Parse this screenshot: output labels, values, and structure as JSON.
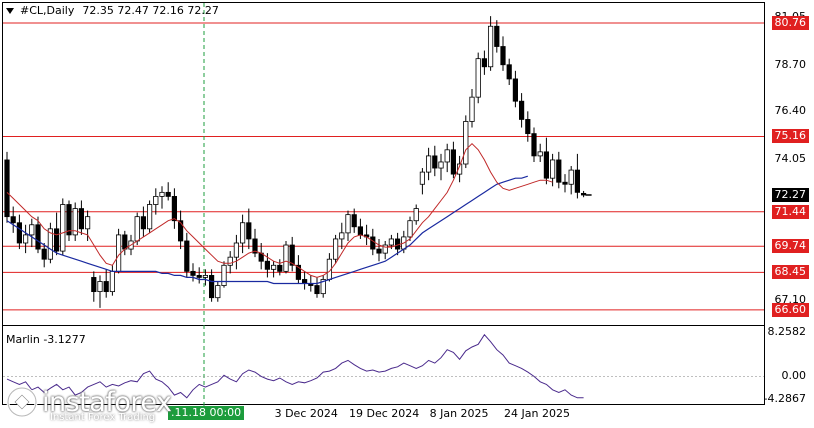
{
  "header": {
    "symbol": "#CL,Daily",
    "ohlc": "72.35 72.47 72.16 72.27"
  },
  "price_labels": [
    {
      "text": "81.05",
      "value": 81.05,
      "style": "plain"
    },
    {
      "text": "80.76",
      "value": 80.76,
      "style": "red"
    },
    {
      "text": "78.70",
      "value": 78.7,
      "style": "plain"
    },
    {
      "text": "76.40",
      "value": 76.4,
      "style": "plain"
    },
    {
      "text": "75.16",
      "value": 75.16,
      "style": "red"
    },
    {
      "text": "74.05",
      "value": 74.05,
      "style": "plain"
    },
    {
      "text": "72.27",
      "value": 72.27,
      "style": "black"
    },
    {
      "text": "71.44",
      "value": 71.44,
      "style": "red"
    },
    {
      "text": "69.74",
      "value": 69.74,
      "style": "red"
    },
    {
      "text": "68.45",
      "value": 68.45,
      "style": "red"
    },
    {
      "text": "67.10",
      "value": 67.1,
      "style": "plain"
    },
    {
      "text": "66.60",
      "value": 66.6,
      "style": "red"
    }
  ],
  "horizontal_levels": [
    80.76,
    75.16,
    71.44,
    69.74,
    68.45,
    66.6
  ],
  "crosshair": {
    "label": ".11.18 00:00"
  },
  "date_labels": [
    {
      "text": "3 Dec 2024",
      "index": 48
    },
    {
      "text": "19 Dec 2024",
      "index": 60
    },
    {
      "text": "8 Jan 2025",
      "index": 73
    },
    {
      "text": "24 Jan 2025",
      "index": 85
    }
  ],
  "indicator": {
    "name": "Marlin -3.1277",
    "levels": [
      {
        "text": "8.2582",
        "value": 8.2582
      },
      {
        "text": "0.00",
        "value": 0.0
      },
      {
        "text": "-4.2867",
        "value": -4.2867
      }
    ]
  },
  "watermark": {
    "brand": "instaforex",
    "tagline": "Instant Forex Trading"
  },
  "colors": {
    "bull": "#ffffff",
    "bear": "#000000",
    "level": "#e02020",
    "ma_fast": "#c02828",
    "ma_slow": "#1a2aa0",
    "osc": "#4a2a8c",
    "crosshair": "#1c9c3c"
  },
  "chart_data": {
    "type": "candlestick",
    "title": "#CL,Daily",
    "ylim": [
      66.0,
      81.6
    ],
    "candles": [
      {
        "o": 74.0,
        "h": 74.4,
        "l": 70.9,
        "c": 71.2
      },
      {
        "o": 71.2,
        "h": 71.7,
        "l": 70.4,
        "c": 70.9
      },
      {
        "o": 70.9,
        "h": 71.3,
        "l": 69.6,
        "c": 69.9
      },
      {
        "o": 69.9,
        "h": 70.8,
        "l": 69.4,
        "c": 70.3
      },
      {
        "o": 70.3,
        "h": 71.1,
        "l": 69.7,
        "c": 70.8
      },
      {
        "o": 70.8,
        "h": 71.2,
        "l": 69.4,
        "c": 69.6
      },
      {
        "o": 69.6,
        "h": 69.9,
        "l": 68.7,
        "c": 69.1
      },
      {
        "o": 69.1,
        "h": 70.9,
        "l": 68.9,
        "c": 70.6
      },
      {
        "o": 70.6,
        "h": 71.4,
        "l": 69.3,
        "c": 69.5
      },
      {
        "o": 69.5,
        "h": 72.1,
        "l": 69.3,
        "c": 71.8
      },
      {
        "o": 71.8,
        "h": 72.0,
        "l": 70.0,
        "c": 70.3
      },
      {
        "o": 70.3,
        "h": 71.9,
        "l": 70.0,
        "c": 71.6
      },
      {
        "o": 71.6,
        "h": 72.0,
        "l": 70.3,
        "c": 70.6
      },
      {
        "o": 70.6,
        "h": 71.5,
        "l": 70.0,
        "c": 71.2
      },
      {
        "o": 68.2,
        "h": 68.5,
        "l": 67.0,
        "c": 67.5
      },
      {
        "o": 67.5,
        "h": 68.3,
        "l": 66.7,
        "c": 68.0
      },
      {
        "o": 68.0,
        "h": 68.6,
        "l": 67.2,
        "c": 67.5
      },
      {
        "o": 67.5,
        "h": 68.8,
        "l": 67.3,
        "c": 68.5
      },
      {
        "o": 68.5,
        "h": 70.6,
        "l": 68.4,
        "c": 70.3
      },
      {
        "o": 70.3,
        "h": 70.5,
        "l": 69.3,
        "c": 69.6
      },
      {
        "o": 69.6,
        "h": 70.3,
        "l": 69.3,
        "c": 70.0
      },
      {
        "o": 70.0,
        "h": 71.4,
        "l": 69.8,
        "c": 71.2
      },
      {
        "o": 71.2,
        "h": 71.7,
        "l": 70.2,
        "c": 70.6
      },
      {
        "o": 70.6,
        "h": 72.0,
        "l": 70.4,
        "c": 71.8
      },
      {
        "o": 71.8,
        "h": 72.6,
        "l": 71.3,
        "c": 72.2
      },
      {
        "o": 72.2,
        "h": 72.7,
        "l": 71.6,
        "c": 72.4
      },
      {
        "o": 72.4,
        "h": 72.9,
        "l": 72.0,
        "c": 72.2
      },
      {
        "o": 72.2,
        "h": 72.6,
        "l": 70.6,
        "c": 71.0
      },
      {
        "o": 71.0,
        "h": 71.5,
        "l": 69.6,
        "c": 70.0
      },
      {
        "o": 70.0,
        "h": 70.4,
        "l": 68.2,
        "c": 68.5
      },
      {
        "o": 68.5,
        "h": 68.9,
        "l": 68.0,
        "c": 68.3
      },
      {
        "o": 68.3,
        "h": 68.7,
        "l": 67.9,
        "c": 68.2
      },
      {
        "o": 68.2,
        "h": 68.6,
        "l": 67.8,
        "c": 68.3
      },
      {
        "o": 68.3,
        "h": 68.6,
        "l": 67.0,
        "c": 67.2
      },
      {
        "o": 67.2,
        "h": 68.0,
        "l": 67.0,
        "c": 67.8
      },
      {
        "o": 67.8,
        "h": 69.0,
        "l": 67.7,
        "c": 68.8
      },
      {
        "o": 68.8,
        "h": 69.5,
        "l": 68.4,
        "c": 69.2
      },
      {
        "o": 69.2,
        "h": 70.3,
        "l": 68.6,
        "c": 69.9
      },
      {
        "o": 69.9,
        "h": 71.3,
        "l": 69.4,
        "c": 70.9
      },
      {
        "o": 70.9,
        "h": 71.6,
        "l": 69.6,
        "c": 70.1
      },
      {
        "o": 70.1,
        "h": 70.6,
        "l": 69.2,
        "c": 69.4
      },
      {
        "o": 69.4,
        "h": 69.9,
        "l": 68.6,
        "c": 69.0
      },
      {
        "o": 69.0,
        "h": 69.4,
        "l": 68.2,
        "c": 68.6
      },
      {
        "o": 68.6,
        "h": 69.0,
        "l": 68.2,
        "c": 68.8
      },
      {
        "o": 68.8,
        "h": 69.1,
        "l": 68.3,
        "c": 68.5
      },
      {
        "o": 68.5,
        "h": 70.0,
        "l": 68.4,
        "c": 69.8
      },
      {
        "o": 69.8,
        "h": 70.2,
        "l": 68.5,
        "c": 68.8
      },
      {
        "o": 68.8,
        "h": 69.3,
        "l": 67.9,
        "c": 68.1
      },
      {
        "o": 68.1,
        "h": 68.5,
        "l": 67.6,
        "c": 67.9
      },
      {
        "o": 67.9,
        "h": 68.3,
        "l": 67.5,
        "c": 67.8
      },
      {
        "o": 67.8,
        "h": 68.2,
        "l": 67.2,
        "c": 67.4
      },
      {
        "o": 67.4,
        "h": 68.3,
        "l": 67.2,
        "c": 68.1
      },
      {
        "o": 68.1,
        "h": 69.4,
        "l": 68.0,
        "c": 69.1
      },
      {
        "o": 69.1,
        "h": 70.3,
        "l": 68.9,
        "c": 70.1
      },
      {
        "o": 70.1,
        "h": 70.9,
        "l": 69.6,
        "c": 70.4
      },
      {
        "o": 70.4,
        "h": 71.5,
        "l": 70.0,
        "c": 71.3
      },
      {
        "o": 71.3,
        "h": 71.6,
        "l": 70.4,
        "c": 70.7
      },
      {
        "o": 70.7,
        "h": 71.1,
        "l": 70.1,
        "c": 70.3
      },
      {
        "o": 70.3,
        "h": 70.8,
        "l": 69.8,
        "c": 70.2
      },
      {
        "o": 70.2,
        "h": 70.6,
        "l": 69.3,
        "c": 69.6
      },
      {
        "o": 69.6,
        "h": 70.1,
        "l": 69.0,
        "c": 69.4
      },
      {
        "o": 69.4,
        "h": 70.0,
        "l": 69.1,
        "c": 69.8
      },
      {
        "o": 69.8,
        "h": 70.3,
        "l": 69.6,
        "c": 70.1
      },
      {
        "o": 70.1,
        "h": 70.4,
        "l": 69.3,
        "c": 69.6
      },
      {
        "o": 69.6,
        "h": 70.5,
        "l": 69.4,
        "c": 70.2
      },
      {
        "o": 70.2,
        "h": 71.2,
        "l": 70.0,
        "c": 71.0
      },
      {
        "o": 71.0,
        "h": 71.8,
        "l": 70.8,
        "c": 71.6
      },
      {
        "o": 72.8,
        "h": 73.6,
        "l": 72.3,
        "c": 73.4
      },
      {
        "o": 73.4,
        "h": 74.6,
        "l": 73.0,
        "c": 74.2
      },
      {
        "o": 74.2,
        "h": 74.7,
        "l": 73.2,
        "c": 73.6
      },
      {
        "o": 73.6,
        "h": 74.3,
        "l": 73.0,
        "c": 73.9
      },
      {
        "o": 73.9,
        "h": 74.8,
        "l": 73.4,
        "c": 74.5
      },
      {
        "o": 74.5,
        "h": 74.9,
        "l": 73.1,
        "c": 73.3
      },
      {
        "o": 73.3,
        "h": 74.2,
        "l": 72.9,
        "c": 73.8
      },
      {
        "o": 73.8,
        "h": 76.2,
        "l": 73.6,
        "c": 75.9
      },
      {
        "o": 75.9,
        "h": 77.5,
        "l": 75.6,
        "c": 77.1
      },
      {
        "o": 77.1,
        "h": 79.3,
        "l": 76.8,
        "c": 79.0
      },
      {
        "o": 79.0,
        "h": 79.4,
        "l": 78.2,
        "c": 78.6
      },
      {
        "o": 78.6,
        "h": 81.1,
        "l": 78.4,
        "c": 80.6
      },
      {
        "o": 80.6,
        "h": 80.9,
        "l": 79.3,
        "c": 79.6
      },
      {
        "o": 79.6,
        "h": 80.1,
        "l": 78.4,
        "c": 78.7
      },
      {
        "o": 78.7,
        "h": 79.0,
        "l": 77.7,
        "c": 78.0
      },
      {
        "o": 78.0,
        "h": 78.4,
        "l": 76.6,
        "c": 76.9
      },
      {
        "o": 76.9,
        "h": 77.3,
        "l": 75.6,
        "c": 76.0
      },
      {
        "o": 76.0,
        "h": 76.4,
        "l": 74.9,
        "c": 75.3
      },
      {
        "o": 75.3,
        "h": 75.6,
        "l": 73.9,
        "c": 74.2
      },
      {
        "o": 74.2,
        "h": 74.8,
        "l": 73.9,
        "c": 74.4
      },
      {
        "o": 74.4,
        "h": 75.1,
        "l": 72.8,
        "c": 73.1
      },
      {
        "o": 73.1,
        "h": 74.3,
        "l": 72.7,
        "c": 74.0
      },
      {
        "o": 74.0,
        "h": 74.4,
        "l": 72.6,
        "c": 72.9
      },
      {
        "o": 72.9,
        "h": 73.3,
        "l": 72.4,
        "c": 72.8
      },
      {
        "o": 72.8,
        "h": 73.7,
        "l": 72.3,
        "c": 73.5
      },
      {
        "o": 73.5,
        "h": 74.3,
        "l": 72.1,
        "c": 72.4
      },
      {
        "o": 72.35,
        "h": 72.47,
        "l": 72.16,
        "c": 72.27
      }
    ],
    "ma_fast": [
      72.4,
      72.1,
      71.8,
      71.5,
      71.2,
      71.0,
      70.6,
      70.4,
      70.3,
      70.4,
      70.5,
      70.5,
      70.4,
      70.3,
      69.8,
      69.3,
      68.9,
      68.8,
      69.3,
      69.6,
      69.8,
      70.0,
      70.2,
      70.4,
      70.6,
      70.8,
      71.0,
      71.1,
      70.9,
      70.5,
      70.2,
      69.9,
      69.6,
      69.3,
      69.0,
      68.9,
      68.9,
      69.0,
      69.2,
      69.4,
      69.5,
      69.4,
      69.2,
      69.0,
      68.9,
      69.0,
      68.9,
      68.7,
      68.5,
      68.3,
      68.2,
      68.3,
      68.5,
      68.9,
      69.4,
      69.9,
      70.2,
      70.3,
      70.2,
      70.0,
      69.8,
      69.7,
      69.7,
      69.8,
      69.9,
      70.1,
      70.5,
      70.9,
      71.2,
      71.6,
      72.0,
      72.4,
      73.0,
      73.7,
      74.5,
      74.8,
      74.5,
      74.0,
      73.4,
      72.9,
      72.6,
      72.5,
      72.6,
      72.7,
      72.8,
      72.9,
      73.0,
      73.0,
      72.9
    ],
    "ma_slow": [
      71.0,
      70.8,
      70.6,
      70.4,
      70.2,
      70.0,
      69.8,
      69.6,
      69.4,
      69.3,
      69.2,
      69.1,
      69.0,
      68.9,
      68.8,
      68.7,
      68.6,
      68.5,
      68.5,
      68.5,
      68.5,
      68.5,
      68.5,
      68.5,
      68.5,
      68.4,
      68.4,
      68.3,
      68.3,
      68.2,
      68.2,
      68.1,
      68.1,
      68.0,
      68.0,
      68.0,
      68.0,
      68.0,
      68.0,
      68.0,
      68.0,
      68.0,
      68.0,
      67.9,
      67.9,
      67.9,
      67.9,
      67.9,
      67.9,
      67.9,
      67.9,
      68.0,
      68.1,
      68.2,
      68.3,
      68.4,
      68.5,
      68.6,
      68.7,
      68.8,
      68.9,
      69.0,
      69.2,
      69.4,
      69.6,
      69.8,
      70.1,
      70.4,
      70.6,
      70.8,
      71.0,
      71.2,
      71.4,
      71.6,
      71.8,
      72.0,
      72.2,
      72.4,
      72.6,
      72.8,
      72.9,
      73.0,
      73.1,
      73.1,
      73.2
    ],
    "oscillator": [
      -0.5,
      -1.0,
      -1.5,
      -1.0,
      -2.5,
      -2.0,
      -3.0,
      -2.2,
      -1.5,
      -2.5,
      -2.0,
      -3.5,
      -3.0,
      -2.0,
      -1.5,
      -1.0,
      -2.0,
      -1.5,
      -1.8,
      -1.2,
      -0.8,
      -1.0,
      0.5,
      1.0,
      -0.5,
      -1.0,
      -2.0,
      -3.5,
      -3.0,
      -4.0,
      -2.5,
      -1.5,
      -2.0,
      -1.5,
      -1.0,
      0.2,
      -0.5,
      -1.0,
      0.5,
      1.2,
      0.8,
      0.0,
      -0.5,
      -0.8,
      -0.3,
      -1.0,
      -1.5,
      -1.0,
      -1.2,
      -0.8,
      -0.3,
      0.8,
      1.0,
      1.5,
      2.5,
      3.0,
      2.2,
      1.5,
      1.0,
      1.2,
      0.8,
      1.0,
      1.5,
      1.8,
      2.5,
      2.0,
      1.5,
      2.0,
      3.0,
      2.5,
      3.5,
      5.0,
      4.5,
      3.2,
      4.8,
      5.5,
      6.0,
      7.8,
      6.5,
      5.0,
      4.0,
      2.5,
      2.0,
      1.5,
      0.8,
      0.0,
      -1.0,
      -1.5,
      -2.5,
      -3.0,
      -2.5,
      -3.5,
      -4.0,
      -4.0
    ],
    "oscillator_range": [
      -4.2867,
      8.2582
    ],
    "levels": [
      80.76,
      75.16,
      71.44,
      69.74,
      68.45,
      66.6
    ]
  }
}
